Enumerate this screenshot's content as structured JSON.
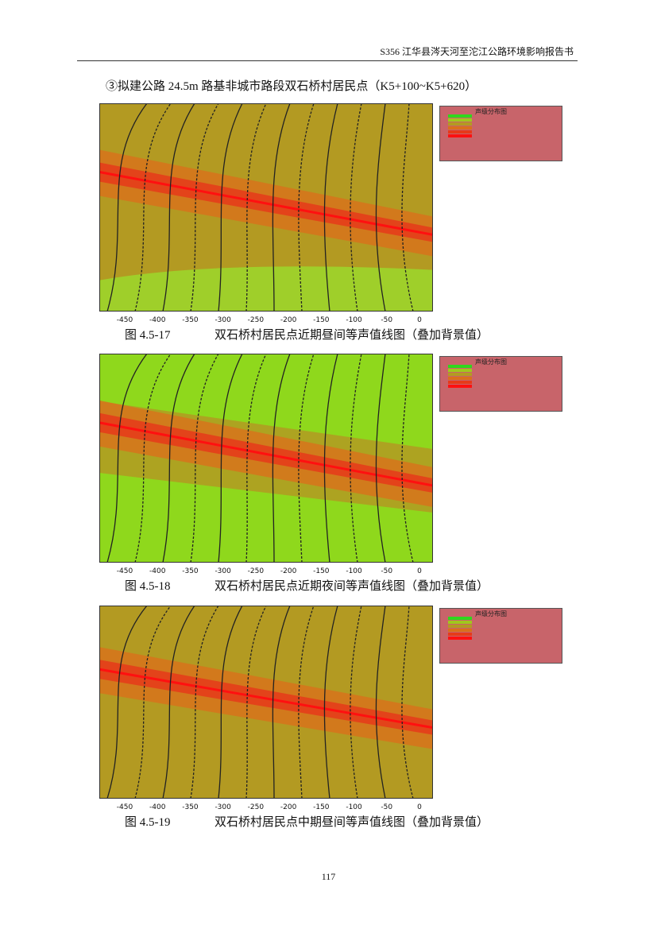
{
  "header": {
    "title": "S356 江华县涔天河至沱江公路环境影响报告书"
  },
  "section": {
    "heading": "③拟建公路 24.5m 路基非城市路段双石桥村居民点（K5+100~K5+620）"
  },
  "figures": [
    {
      "number": "图 4.5-17",
      "caption": "双石桥村居民点近期昼间等声值线图（叠加背景值）",
      "legend_title": "声级分布图",
      "x_ticks": [
        "-450",
        "-400",
        "-350",
        "-300",
        "-250",
        "-200",
        "-150",
        "-100",
        "-50",
        "0"
      ]
    },
    {
      "number": "图 4.5-18",
      "caption": "双石桥村居民点近期夜间等声值线图（叠加背景值）",
      "legend_title": "声级分布图",
      "x_ticks": [
        "-450",
        "-400",
        "-350",
        "-300",
        "-250",
        "-200",
        "-150",
        "-100",
        "-50",
        "0"
      ]
    },
    {
      "number": "图 4.5-19",
      "caption": "双石桥村居民点中期昼间等声值线图（叠加背景值）",
      "legend_title": "声级分布图",
      "x_ticks": [
        "-450",
        "-400",
        "-350",
        "-300",
        "-250",
        "-200",
        "-150",
        "-100",
        "-50",
        "0"
      ]
    }
  ],
  "footer": {
    "page_number": "117"
  }
}
